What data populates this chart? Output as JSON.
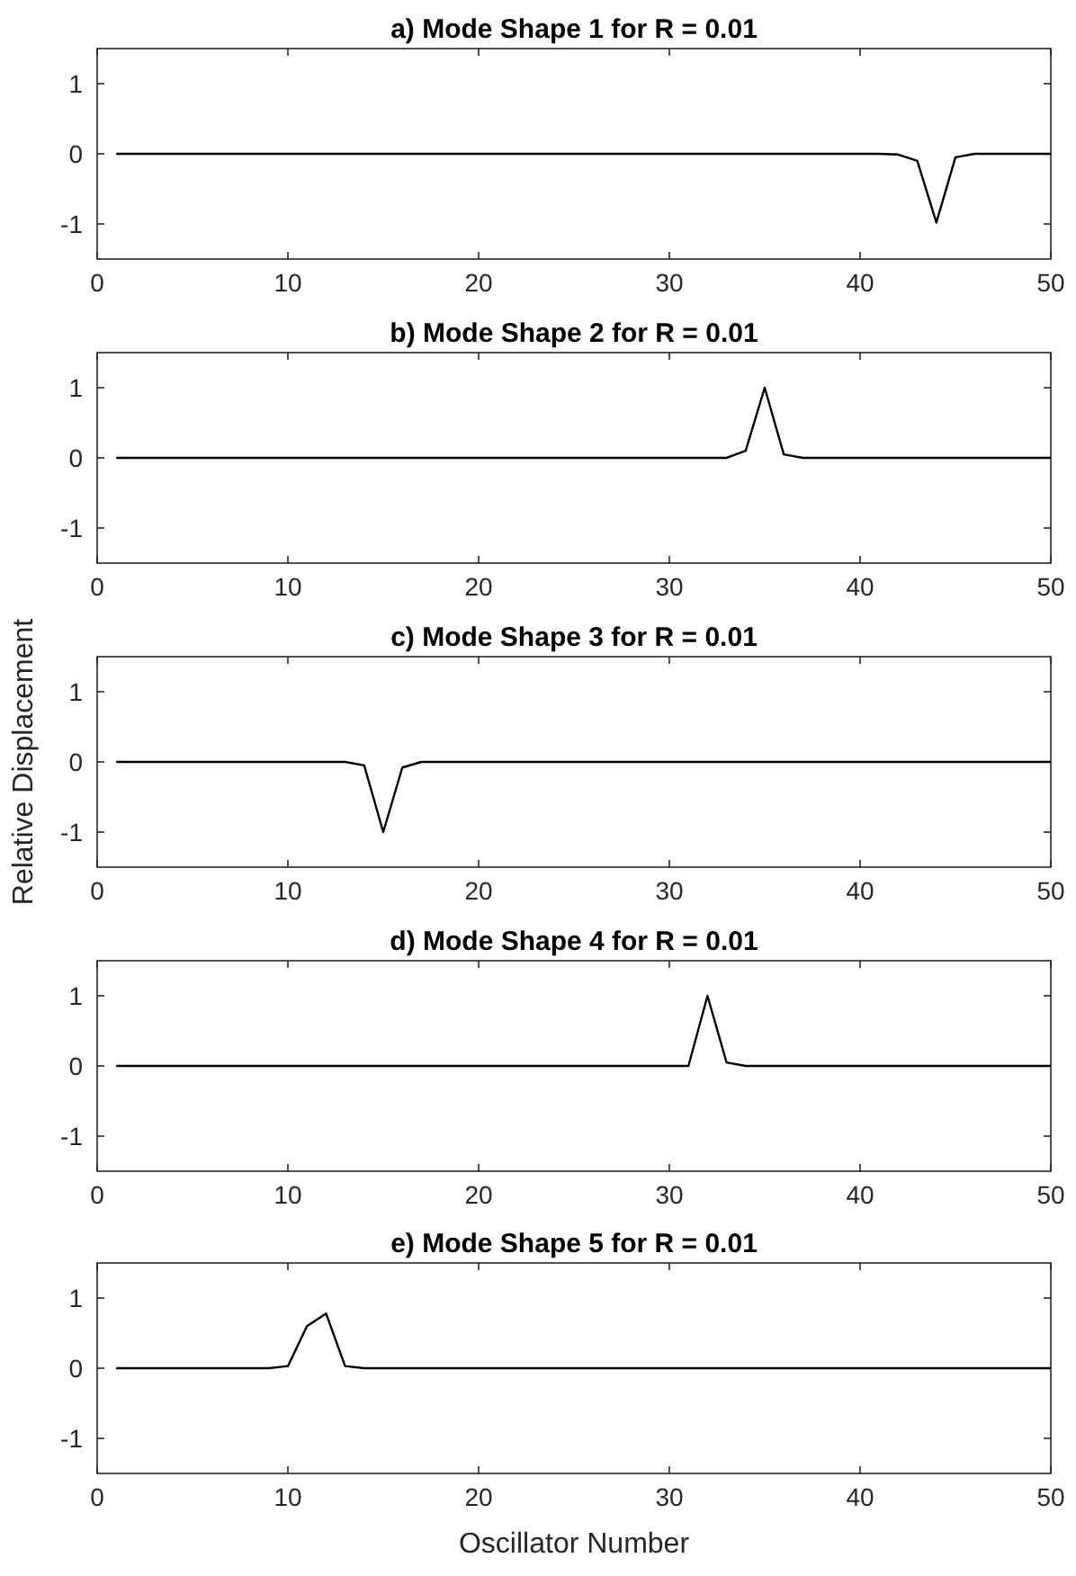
{
  "chart_data": [
    {
      "type": "line",
      "title": "a)   Mode Shape 1 for R = 0.01",
      "xlim": [
        0,
        50
      ],
      "xticks": [
        0,
        10,
        20,
        30,
        40,
        50
      ],
      "ylim": [
        -1.5,
        1.5
      ],
      "yticks": [
        -1,
        0,
        1
      ],
      "marker": "none",
      "line_style": "solid",
      "series": [
        {
          "color": "#000000",
          "x": [
            1,
            41,
            42,
            43,
            44,
            45,
            46,
            50
          ],
          "values": [
            0,
            0,
            -0.01,
            -0.1,
            -0.98,
            -0.05,
            0,
            0
          ]
        }
      ]
    },
    {
      "type": "line",
      "title": "b)   Mode Shape 2 for R = 0.01",
      "xlim": [
        0,
        50
      ],
      "xticks": [
        0,
        10,
        20,
        30,
        40,
        50
      ],
      "ylim": [
        -1.5,
        1.5
      ],
      "yticks": [
        -1,
        0,
        1
      ],
      "marker": "none",
      "line_style": "solid",
      "series": [
        {
          "color": "#000000",
          "x": [
            1,
            33,
            34,
            35,
            36,
            37,
            50
          ],
          "values": [
            0,
            0,
            0.1,
            1,
            0.05,
            0,
            0
          ]
        }
      ]
    },
    {
      "type": "line",
      "title": "c)   Mode Shape 3 for R = 0.01",
      "ylabel": "Relative Displacement",
      "xlim": [
        0,
        50
      ],
      "xticks": [
        0,
        10,
        20,
        30,
        40,
        50
      ],
      "ylim": [
        -1.5,
        1.5
      ],
      "yticks": [
        -1,
        0,
        1
      ],
      "marker": "none",
      "line_style": "solid",
      "series": [
        {
          "color": "#000000",
          "x": [
            1,
            13,
            14,
            15,
            16,
            17,
            50
          ],
          "values": [
            0,
            0,
            -0.05,
            -1,
            -0.08,
            0,
            0
          ]
        }
      ]
    },
    {
      "type": "line",
      "title": "d)   Mode Shape 4 for R = 0.01",
      "xlim": [
        0,
        50
      ],
      "xticks": [
        0,
        10,
        20,
        30,
        40,
        50
      ],
      "ylim": [
        -1.5,
        1.5
      ],
      "yticks": [
        -1,
        0,
        1
      ],
      "marker": "none",
      "line_style": "solid",
      "series": [
        {
          "color": "#000000",
          "x": [
            1,
            31,
            32,
            33,
            34,
            50
          ],
          "values": [
            0,
            0,
            1,
            0.05,
            0,
            0
          ]
        }
      ]
    },
    {
      "type": "line",
      "title": "e)   Mode Shape 5 for R = 0.01",
      "xlabel": "Oscillator Number",
      "xlim": [
        0,
        50
      ],
      "xticks": [
        0,
        10,
        20,
        30,
        40,
        50
      ],
      "ylim": [
        -1.5,
        1.5
      ],
      "yticks": [
        -1,
        0,
        1
      ],
      "marker": "none",
      "line_style": "solid",
      "series": [
        {
          "color": "#000000",
          "x": [
            1,
            9,
            10,
            11,
            12,
            13,
            14,
            50
          ],
          "values": [
            0,
            0,
            0.03,
            0.6,
            0.78,
            0.03,
            0,
            0
          ]
        }
      ]
    }
  ]
}
